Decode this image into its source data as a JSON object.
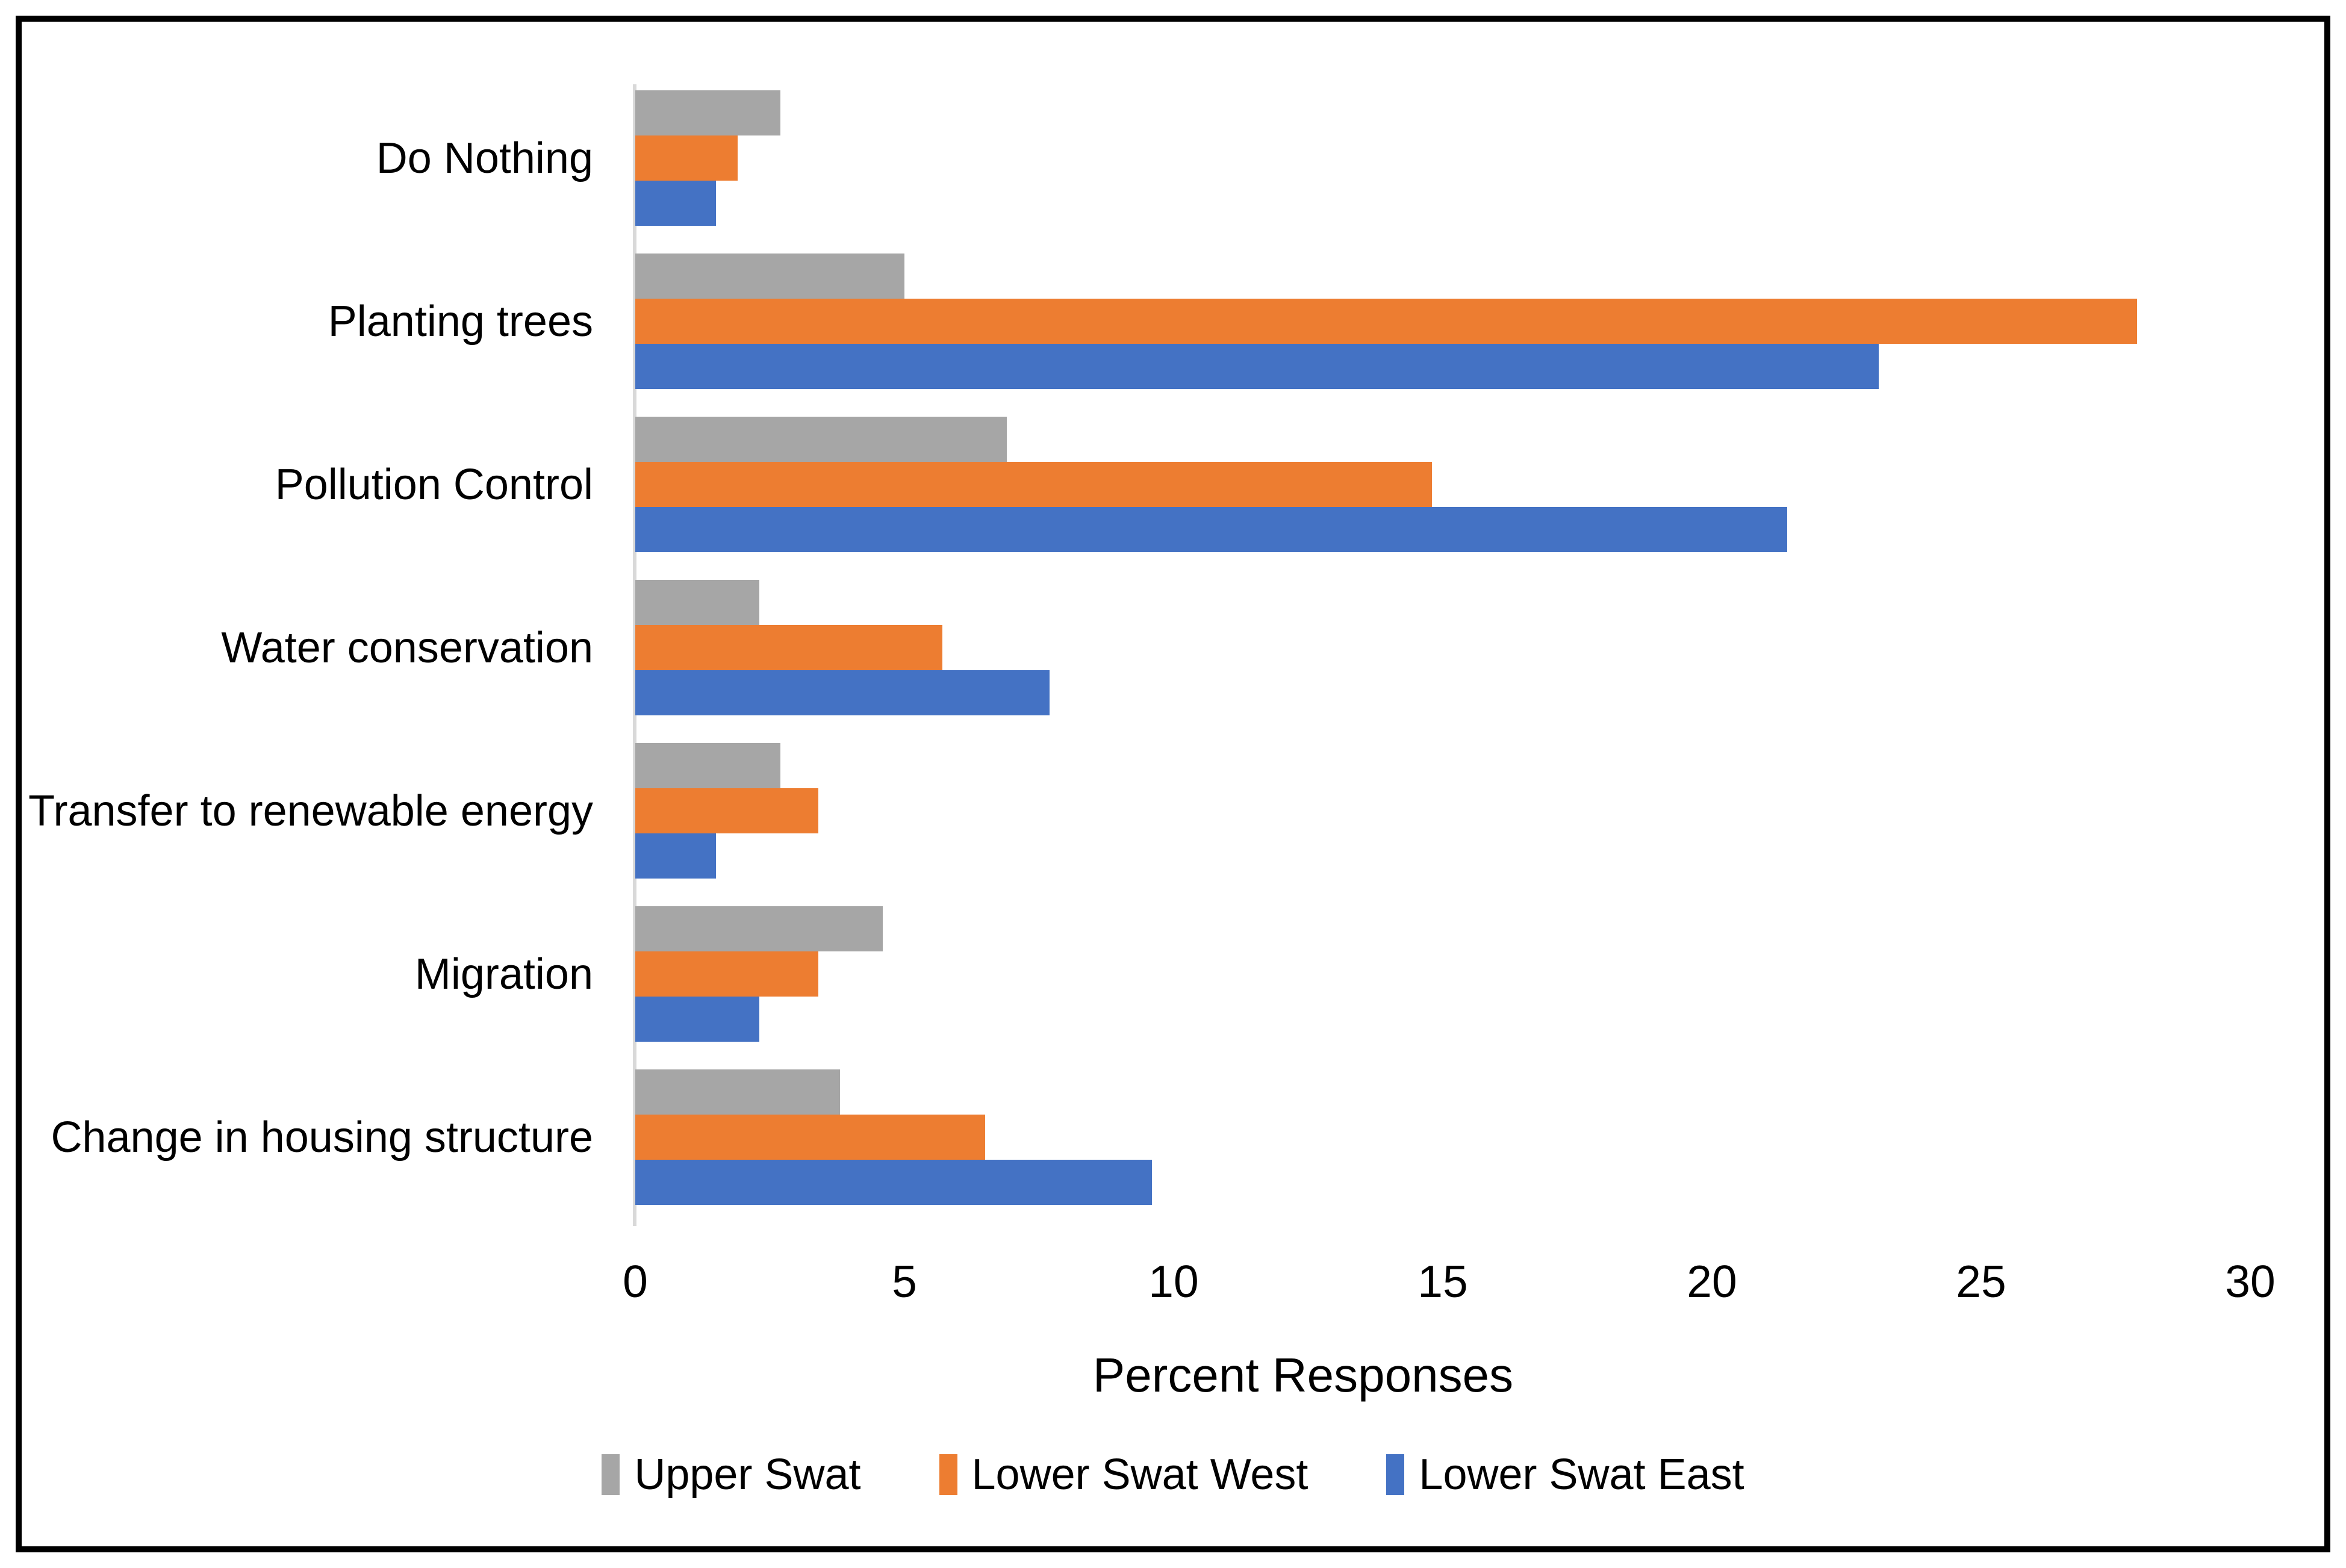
{
  "chart_data": {
    "type": "bar",
    "orientation": "horizontal",
    "title": "",
    "xlabel": "Percent Responses",
    "ylabel": "",
    "xlim": [
      0,
      30
    ],
    "x_ticks": [
      0,
      5,
      10,
      15,
      20,
      25,
      30
    ],
    "grid": false,
    "legend_position": "bottom",
    "categories": [
      "Do Nothing",
      "Planting trees",
      "Pollution Control",
      "Water conservation",
      "Transfer to renewable energy",
      "Migration",
      "Change in housing structure"
    ],
    "series": [
      {
        "name": "Upper Swat",
        "color": "#A6A6A6",
        "values": [
          2.7,
          5.0,
          6.9,
          2.3,
          2.7,
          4.6,
          3.8
        ]
      },
      {
        "name": "Lower Swat West",
        "color": "#ED7D31",
        "values": [
          1.9,
          27.9,
          14.8,
          5.7,
          3.4,
          3.4,
          6.5
        ]
      },
      {
        "name": "Lower Swat East",
        "color": "#4472C4",
        "values": [
          1.5,
          23.1,
          21.4,
          7.7,
          1.5,
          2.3,
          9.6
        ]
      }
    ],
    "colors": {
      "axis_line": "#D9D9D9",
      "frame": "#000000",
      "background": "#FFFFFF",
      "text": "#000000"
    }
  }
}
